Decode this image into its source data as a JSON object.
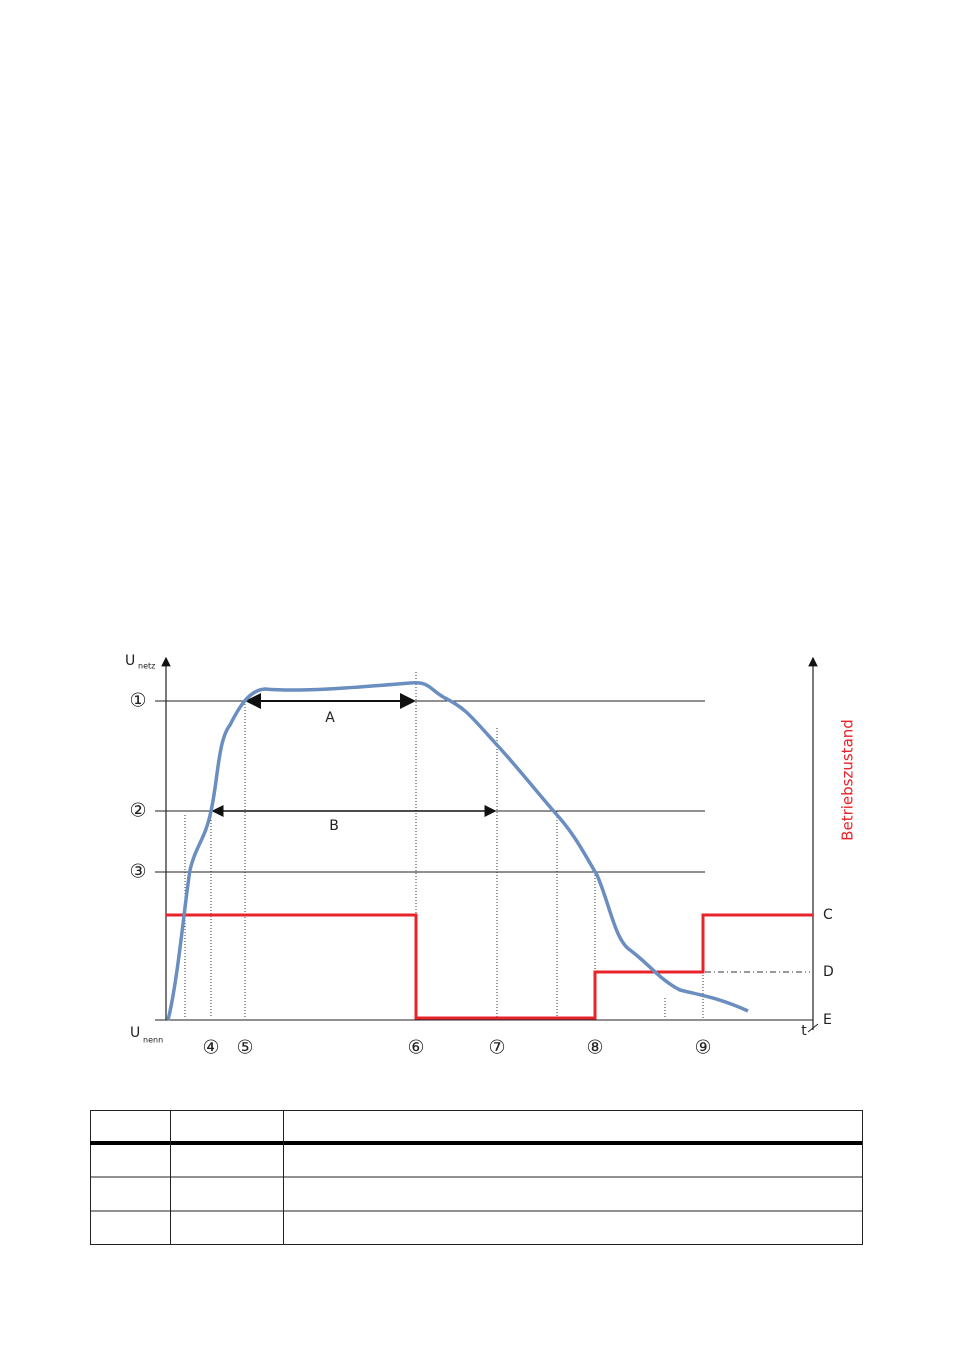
{
  "axis": {
    "y_symbol": "U",
    "y_top_sub": "netz",
    "y_bottom_sub": "nenn",
    "x_label": "t",
    "right_label": "Betriebszustand"
  },
  "levels": [
    "①",
    "②",
    "③"
  ],
  "states": [
    "C",
    "D",
    "E"
  ],
  "markers": [
    "④",
    "⑤",
    "⑥",
    "⑦",
    "⑧",
    "⑨"
  ],
  "spans": [
    "A",
    "B"
  ]
}
